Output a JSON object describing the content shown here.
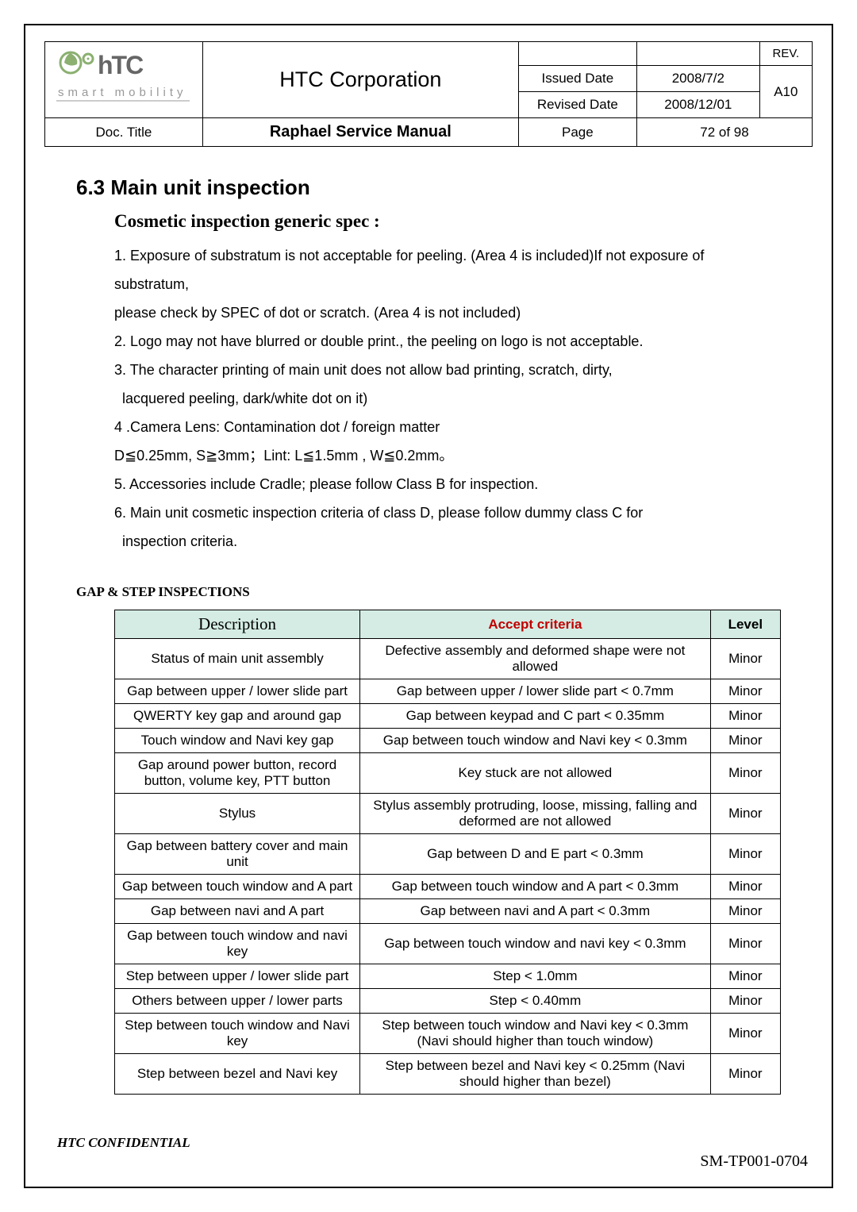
{
  "header": {
    "company": "HTC Corporation",
    "issued_label": "Issued Date",
    "issued_date": "2008/7/2",
    "revised_label": "Revised Date",
    "revised_date": "2008/12/01",
    "rev_label": "REV.",
    "rev": "A10",
    "doc_title_label": "Doc. Title",
    "doc_title": "Raphael Service Manual",
    "page_label": "Page",
    "page_value": "72  of  98",
    "logo_subtext": "smart mobility"
  },
  "section": {
    "number_title": "6.3  Main unit inspection",
    "sub_title": "Cosmetic inspection generic spec :",
    "items": [
      "1. Exposure of substratum is not acceptable for peeling. (Area 4 is included)If not exposure of substratum,",
      "please check by SPEC of dot or scratch. (Area 4 is not included)",
      "2. Logo may not have blurred or double print., the peeling on logo is not acceptable.",
      "3. The character printing of main unit does not allow bad printing, scratch, dirty,",
      " lacquered peeling, dark/white dot on it)",
      "4 .Camera Lens: Contamination dot / foreign matter",
      "D≦0.25mm, S≧3mm；Lint: L≦1.5mm , W≦0.2mm。",
      "5.  Accessories include Cradle; please follow Class B for inspection.",
      "6. Main unit cosmetic inspection criteria of class D, please follow dummy class C for",
      " inspection criteria."
    ]
  },
  "table": {
    "title": "GAP & STEP INSPECTIONS",
    "headers": {
      "desc": "Description",
      "accept": "Accept criteria",
      "level": "Level"
    },
    "rows": [
      [
        "Status of main unit assembly",
        "Defective assembly and deformed shape were not allowed",
        "Minor"
      ],
      [
        "Gap between upper / lower slide part",
        "Gap between upper / lower slide part < 0.7mm",
        "Minor"
      ],
      [
        "QWERTY key gap and around gap",
        "Gap between keypad and C part < 0.35mm",
        "Minor"
      ],
      [
        "Touch window and Navi key gap",
        "Gap between touch window and Navi key < 0.3mm",
        "Minor"
      ],
      [
        "Gap around power button, record button, volume key, PTT button",
        "Key stuck are not allowed",
        "Minor"
      ],
      [
        "Stylus",
        "Stylus assembly protruding, loose, missing, falling and deformed are not allowed",
        "Minor"
      ],
      [
        "Gap between battery cover and main unit",
        "Gap between D and E part < 0.3mm",
        "Minor"
      ],
      [
        "Gap between touch window and A part",
        "Gap between touch window and A part < 0.3mm",
        "Minor"
      ],
      [
        "Gap between navi and A part",
        "Gap between navi and A part < 0.3mm",
        "Minor"
      ],
      [
        "Gap between touch window and navi key",
        "Gap between touch window and navi key < 0.3mm",
        "Minor"
      ],
      [
        "Step between upper / lower slide part",
        "Step < 1.0mm",
        "Minor"
      ],
      [
        "Others between upper / lower parts",
        "Step < 0.40mm",
        "Minor"
      ],
      [
        "Step between touch window and Navi key",
        "Step between touch window and Navi key < 0.3mm (Navi should higher than touch window)",
        "Minor"
      ],
      [
        "Step between bezel and Navi key",
        "Step between bezel and Navi key < 0.25mm (Navi should higher than bezel)",
        "Minor"
      ]
    ]
  },
  "footer": {
    "confidential": "HTC CONFIDENTIAL",
    "doc_id": "SM-TP001-0704"
  },
  "colors": {
    "header_bg": "#d4ece4",
    "accept_color": "#c00000",
    "logo_green": "#6b9a4a"
  }
}
